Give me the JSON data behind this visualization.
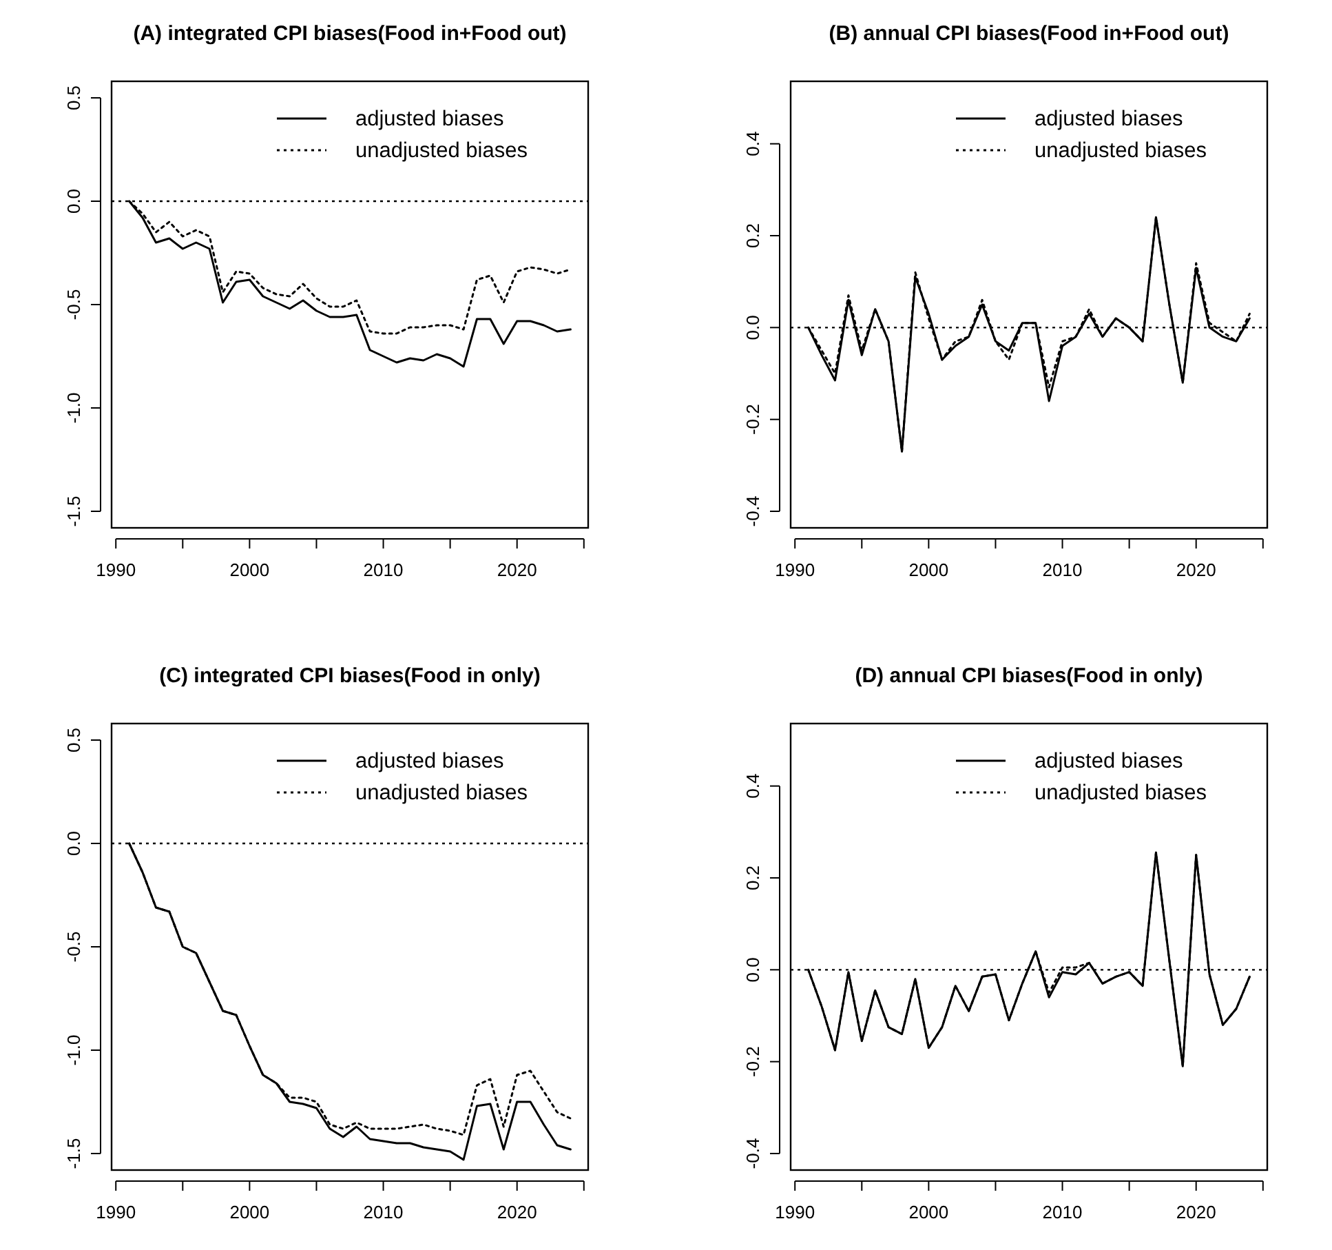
{
  "chart_data": [
    {
      "type": "line",
      "title": "(A) integrated CPI biases(Food in+Food out)",
      "legend": "top right",
      "grid": false,
      "x": [
        1991,
        1992,
        1993,
        1994,
        1995,
        1996,
        1997,
        1998,
        1999,
        2000,
        2001,
        2002,
        2003,
        2004,
        2005,
        2006,
        2007,
        2008,
        2009,
        2010,
        2011,
        2012,
        2013,
        2014,
        2015,
        2016,
        2017,
        2018,
        2019,
        2020,
        2021,
        2022,
        2023,
        2024
      ],
      "xlim": [
        1989.68,
        2025.32
      ],
      "xticks": [
        1990,
        {
          "value": 1995,
          "label": null
        },
        2000,
        {
          "value": 2005,
          "label": null
        },
        2010,
        {
          "value": 2015,
          "label": null
        },
        2020,
        {
          "value": 2025,
          "label": null
        }
      ],
      "ylim": [
        -1.58,
        0.58
      ],
      "yticks": [
        {
          "value": 0.5,
          "label": "0.5"
        },
        {
          "value": 0,
          "label": "0.0"
        },
        {
          "value": -0.5,
          "label": "-0.5"
        },
        {
          "value": -1,
          "label": "-1.0"
        },
        {
          "value": -1.5,
          "label": "-1.5"
        }
      ],
      "ref_lines": [
        {
          "axis": "y",
          "value": 0,
          "color": "#000000",
          "line_style": "dotted"
        }
      ],
      "series": [
        {
          "name": "adjusted biases",
          "color": "#000000",
          "line_style": "solid",
          "values": [
            0,
            -0.08,
            -0.2,
            -0.18,
            -0.23,
            -0.2,
            -0.23,
            -0.49,
            -0.39,
            -0.38,
            -0.46,
            -0.49,
            -0.52,
            -0.48,
            -0.53,
            -0.56,
            -0.56,
            -0.55,
            -0.72,
            -0.75,
            -0.78,
            -0.76,
            -0.77,
            -0.74,
            -0.76,
            -0.8,
            -0.57,
            -0.57,
            -0.69,
            -0.58,
            -0.58,
            -0.6,
            -0.63,
            -0.62
          ]
        },
        {
          "name": "unadjusted biases",
          "color": "#000000",
          "line_style": "dotted",
          "values": [
            0,
            -0.06,
            -0.15,
            -0.1,
            -0.17,
            -0.14,
            -0.17,
            -0.44,
            -0.34,
            -0.35,
            -0.42,
            -0.45,
            -0.46,
            -0.4,
            -0.47,
            -0.51,
            -0.51,
            -0.48,
            -0.63,
            -0.64,
            -0.64,
            -0.61,
            -0.61,
            -0.6,
            -0.6,
            -0.62,
            -0.38,
            -0.36,
            -0.49,
            -0.34,
            -0.32,
            -0.33,
            -0.35,
            -0.33
          ]
        }
      ]
    },
    {
      "type": "line",
      "title": "(B) annual CPI biases(Food in+Food out)",
      "legend": "top right",
      "grid": false,
      "x": [
        1991,
        1992,
        1993,
        1994,
        1995,
        1996,
        1997,
        1998,
        1999,
        2000,
        2001,
        2002,
        2003,
        2004,
        2005,
        2006,
        2007,
        2008,
        2009,
        2010,
        2011,
        2012,
        2013,
        2014,
        2015,
        2016,
        2017,
        2018,
        2019,
        2020,
        2021,
        2022,
        2023,
        2024
      ],
      "xlim": [
        1989.68,
        2025.32
      ],
      "xticks": [
        1990,
        {
          "value": 1995,
          "label": null
        },
        2000,
        {
          "value": 2005,
          "label": null
        },
        2010,
        {
          "value": 2015,
          "label": null
        },
        2020,
        {
          "value": 2025,
          "label": null
        }
      ],
      "ylim": [
        -0.436,
        0.536
      ],
      "yticks": [
        {
          "value": 0.4,
          "label": "0.4"
        },
        {
          "value": 0.2,
          "label": "0.2"
        },
        {
          "value": 0,
          "label": "0.0"
        },
        {
          "value": -0.2,
          "label": "-0.2"
        },
        {
          "value": -0.4,
          "label": "-0.4"
        }
      ],
      "ref_lines": [
        {
          "axis": "y",
          "value": 0,
          "color": "#000000",
          "line_style": "dotted"
        }
      ],
      "series": [
        {
          "name": "adjusted biases",
          "color": "#000000",
          "line_style": "solid",
          "values": [
            0,
            -0.06,
            -0.115,
            0.06,
            -0.06,
            0.04,
            -0.03,
            -0.27,
            0.11,
            0.03,
            -0.07,
            -0.04,
            -0.02,
            0.05,
            -0.03,
            -0.05,
            0.01,
            0.01,
            -0.16,
            -0.04,
            -0.02,
            0.03,
            -0.02,
            0.02,
            0,
            -0.03,
            0.24,
            0.05,
            -0.12,
            0.13,
            0,
            -0.02,
            -0.03,
            0.02
          ]
        },
        {
          "name": "unadjusted biases",
          "color": "#000000",
          "line_style": "dotted",
          "values": [
            0,
            -0.05,
            -0.1,
            0.07,
            -0.05,
            0.04,
            -0.03,
            -0.27,
            0.12,
            0.02,
            -0.07,
            -0.03,
            -0.02,
            0.06,
            -0.03,
            -0.07,
            0.01,
            0.01,
            -0.13,
            -0.03,
            -0.02,
            0.04,
            -0.02,
            0.02,
            0,
            -0.03,
            0.24,
            0.05,
            -0.12,
            0.14,
            0.01,
            -0.01,
            -0.03,
            0.03
          ]
        }
      ]
    },
    {
      "type": "line",
      "title": "(C) integrated CPI biases(Food in only)",
      "legend": "top right",
      "grid": false,
      "x": [
        1991,
        1992,
        1993,
        1994,
        1995,
        1996,
        1997,
        1998,
        1999,
        2000,
        2001,
        2002,
        2003,
        2004,
        2005,
        2006,
        2007,
        2008,
        2009,
        2010,
        2011,
        2012,
        2013,
        2014,
        2015,
        2016,
        2017,
        2018,
        2019,
        2020,
        2021,
        2022,
        2023,
        2024
      ],
      "xlim": [
        1989.68,
        2025.32
      ],
      "xticks": [
        1990,
        {
          "value": 1995,
          "label": null
        },
        2000,
        {
          "value": 2005,
          "label": null
        },
        2010,
        {
          "value": 2015,
          "label": null
        },
        2020,
        {
          "value": 2025,
          "label": null
        }
      ],
      "ylim": [
        -1.58,
        0.58
      ],
      "yticks": [
        {
          "value": 0.5,
          "label": "0.5"
        },
        {
          "value": 0,
          "label": "0.0"
        },
        {
          "value": -0.5,
          "label": "-0.5"
        },
        {
          "value": -1,
          "label": "-1.0"
        },
        {
          "value": -1.5,
          "label": "-1.5"
        }
      ],
      "ref_lines": [
        {
          "axis": "y",
          "value": 0,
          "color": "#000000",
          "line_style": "dotted"
        }
      ],
      "series": [
        {
          "name": "adjusted biases",
          "color": "#000000",
          "line_style": "solid",
          "values": [
            0,
            -0.14,
            -0.31,
            -0.33,
            -0.5,
            -0.53,
            -0.67,
            -0.81,
            -0.83,
            -0.98,
            -1.12,
            -1.16,
            -1.25,
            -1.26,
            -1.28,
            -1.38,
            -1.42,
            -1.37,
            -1.43,
            -1.44,
            -1.45,
            -1.45,
            -1.47,
            -1.48,
            -1.49,
            -1.53,
            -1.27,
            -1.26,
            -1.48,
            -1.25,
            -1.25,
            -1.36,
            -1.46,
            -1.48
          ]
        },
        {
          "name": "unadjusted biases",
          "color": "#000000",
          "line_style": "dotted",
          "values": [
            0,
            -0.14,
            -0.31,
            -0.33,
            -0.5,
            -0.53,
            -0.67,
            -0.81,
            -0.83,
            -0.98,
            -1.12,
            -1.16,
            -1.23,
            -1.23,
            -1.25,
            -1.36,
            -1.38,
            -1.35,
            -1.38,
            -1.38,
            -1.38,
            -1.37,
            -1.36,
            -1.38,
            -1.39,
            -1.41,
            -1.17,
            -1.14,
            -1.37,
            -1.12,
            -1.1,
            -1.2,
            -1.3,
            -1.33
          ]
        }
      ]
    },
    {
      "type": "line",
      "title": "(D) annual CPI biases(Food in only)",
      "legend": "top right",
      "grid": false,
      "x": [
        1991,
        1992,
        1993,
        1994,
        1995,
        1996,
        1997,
        1998,
        1999,
        2000,
        2001,
        2002,
        2003,
        2004,
        2005,
        2006,
        2007,
        2008,
        2009,
        2010,
        2011,
        2012,
        2013,
        2014,
        2015,
        2016,
        2017,
        2018,
        2019,
        2020,
        2021,
        2022,
        2023,
        2024
      ],
      "xlim": [
        1989.68,
        2025.32
      ],
      "xticks": [
        1990,
        {
          "value": 1995,
          "label": null
        },
        2000,
        {
          "value": 2005,
          "label": null
        },
        2010,
        {
          "value": 2015,
          "label": null
        },
        2020,
        {
          "value": 2025,
          "label": null
        }
      ],
      "ylim": [
        -0.436,
        0.536
      ],
      "yticks": [
        {
          "value": 0.4,
          "label": "0.4"
        },
        {
          "value": 0.2,
          "label": "0.2"
        },
        {
          "value": 0,
          "label": "0.0"
        },
        {
          "value": -0.2,
          "label": "-0.2"
        },
        {
          "value": -0.4,
          "label": "-0.4"
        }
      ],
      "ref_lines": [
        {
          "axis": "y",
          "value": 0,
          "color": "#000000",
          "line_style": "dotted"
        }
      ],
      "series": [
        {
          "name": "adjusted biases",
          "color": "#000000",
          "line_style": "solid",
          "values": [
            0,
            -0.08,
            -0.175,
            -0.005,
            -0.155,
            -0.045,
            -0.125,
            -0.14,
            -0.02,
            -0.17,
            -0.125,
            -0.035,
            -0.09,
            -0.015,
            -0.01,
            -0.11,
            -0.03,
            0.04,
            -0.06,
            -0.005,
            -0.01,
            0.015,
            -0.03,
            -0.015,
            -0.005,
            -0.035,
            0.255,
            0.02,
            -0.21,
            0.25,
            -0.01,
            -0.12,
            -0.085,
            -0.015
          ]
        },
        {
          "name": "unadjusted biases",
          "color": "#000000",
          "line_style": "dotted",
          "values": [
            0,
            -0.08,
            -0.175,
            -0.005,
            -0.155,
            -0.045,
            -0.125,
            -0.14,
            -0.02,
            -0.17,
            -0.125,
            -0.035,
            -0.09,
            -0.015,
            -0.01,
            -0.11,
            -0.03,
            0.04,
            -0.05,
            0.005,
            0.005,
            0.015,
            -0.03,
            -0.015,
            -0.005,
            -0.035,
            0.255,
            0.02,
            -0.21,
            0.25,
            -0.01,
            -0.12,
            -0.085,
            -0.015
          ]
        }
      ]
    }
  ]
}
